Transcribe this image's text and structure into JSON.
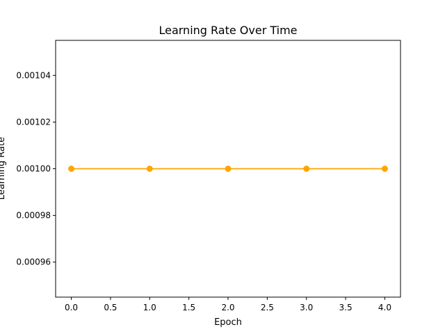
{
  "chart_data": {
    "type": "line",
    "title": "Learning Rate Over Time",
    "xlabel": "Epoch",
    "ylabel": "Learning Rate",
    "x": [
      0,
      1,
      2,
      3,
      4
    ],
    "series": [
      {
        "values": [
          0.001,
          0.001,
          0.001,
          0.001,
          0.001
        ],
        "color": "#FFA500",
        "marker": "circle"
      }
    ],
    "xlim": [
      -0.2,
      4.2
    ],
    "ylim": [
      0.000945,
      0.001055
    ],
    "xticks": [
      0.0,
      0.5,
      1.0,
      1.5,
      2.0,
      2.5,
      3.0,
      3.5,
      4.0
    ],
    "xtick_labels": [
      "0.0",
      "0.5",
      "1.0",
      "1.5",
      "2.0",
      "2.5",
      "3.0",
      "3.5",
      "4.0"
    ],
    "yticks": [
      0.00096,
      0.00098,
      0.001,
      0.00102,
      0.00104
    ],
    "ytick_labels": [
      "0.00096",
      "0.00098",
      "0.00100",
      "0.00102",
      "0.00104"
    ],
    "grid": false,
    "legend": false
  }
}
